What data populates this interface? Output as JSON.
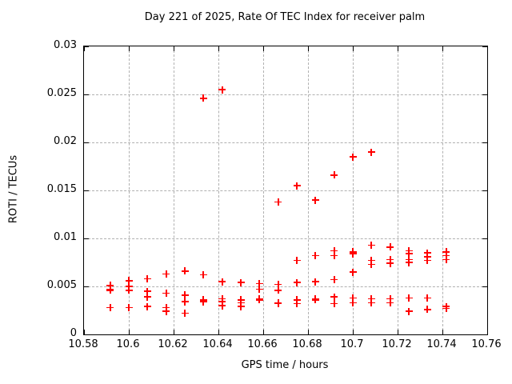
{
  "title": "Day 221 of 2025, Rate Of TEC Index for receiver palm",
  "colors": {
    "marker": "#ff0000",
    "grid": "#b0b0b0",
    "axis": "#000000",
    "background": "#ffffff"
  },
  "chart_data": {
    "type": "scatter",
    "title": "Day 221 of 2025, Rate Of TEC Index for receiver palm",
    "xlabel": "GPS time / hours",
    "ylabel": "ROTI / TECUs",
    "xlim": [
      10.58,
      10.76
    ],
    "ylim": [
      0,
      0.03
    ],
    "xticks": [
      10.58,
      10.6,
      10.62,
      10.64,
      10.66,
      10.68,
      10.7,
      10.72,
      10.74,
      10.76
    ],
    "xtick_labels": [
      "10.58",
      "10.6",
      "10.62",
      "10.64",
      "10.66",
      "10.68",
      "10.7",
      "10.72",
      "10.74",
      "10.76"
    ],
    "yticks": [
      0,
      0.005,
      0.01,
      0.015,
      0.02,
      0.025,
      0.03
    ],
    "ytick_labels": [
      "0",
      "0.005",
      "0.01",
      "0.015",
      "0.02",
      "0.025",
      "0.03"
    ],
    "grid": true,
    "legend": false,
    "marker_style": "plus",
    "points": [
      [
        10.5917,
        0.0051
      ],
      [
        10.5917,
        0.0047
      ],
      [
        10.5917,
        0.0046
      ],
      [
        10.5917,
        0.0028
      ],
      [
        10.6,
        0.0056
      ],
      [
        10.6,
        0.005
      ],
      [
        10.6,
        0.0046
      ],
      [
        10.6,
        0.0028
      ],
      [
        10.6083,
        0.0058
      ],
      [
        10.6083,
        0.0045
      ],
      [
        10.6083,
        0.0039
      ],
      [
        10.6083,
        0.0029
      ],
      [
        10.6167,
        0.0063
      ],
      [
        10.6167,
        0.0043
      ],
      [
        10.6167,
        0.0028
      ],
      [
        10.6167,
        0.0024
      ],
      [
        10.625,
        0.0066
      ],
      [
        10.625,
        0.0041
      ],
      [
        10.625,
        0.0034
      ],
      [
        10.625,
        0.0022
      ],
      [
        10.6333,
        0.0246
      ],
      [
        10.6333,
        0.0062
      ],
      [
        10.6333,
        0.0036
      ],
      [
        10.6333,
        0.0034
      ],
      [
        10.6417,
        0.0255
      ],
      [
        10.6417,
        0.0055
      ],
      [
        10.6417,
        0.0037
      ],
      [
        10.6417,
        0.0034
      ],
      [
        10.6417,
        0.003
      ],
      [
        10.65,
        0.0054
      ],
      [
        10.65,
        0.0036
      ],
      [
        10.65,
        0.0033
      ],
      [
        10.65,
        0.0029
      ],
      [
        10.6583,
        0.0053
      ],
      [
        10.6583,
        0.0047
      ],
      [
        10.6583,
        0.0037
      ],
      [
        10.6583,
        0.0036
      ],
      [
        10.6667,
        0.0138
      ],
      [
        10.6667,
        0.0052
      ],
      [
        10.6667,
        0.0046
      ],
      [
        10.6667,
        0.0033
      ],
      [
        10.6667,
        0.0032
      ],
      [
        10.675,
        0.0155
      ],
      [
        10.675,
        0.0077
      ],
      [
        10.675,
        0.0054
      ],
      [
        10.675,
        0.0036
      ],
      [
        10.675,
        0.0032
      ],
      [
        10.6833,
        0.014
      ],
      [
        10.6833,
        0.0082
      ],
      [
        10.6833,
        0.0055
      ],
      [
        10.6833,
        0.0037
      ],
      [
        10.6833,
        0.0036
      ],
      [
        10.6917,
        0.0166
      ],
      [
        10.6917,
        0.0087
      ],
      [
        10.6917,
        0.0082
      ],
      [
        10.6917,
        0.0057
      ],
      [
        10.6917,
        0.0039
      ],
      [
        10.6917,
        0.0032
      ],
      [
        10.7,
        0.0185
      ],
      [
        10.7,
        0.0086
      ],
      [
        10.7,
        0.0084
      ],
      [
        10.7,
        0.0065
      ],
      [
        10.7,
        0.0038
      ],
      [
        10.7,
        0.0033
      ],
      [
        10.7083,
        0.019
      ],
      [
        10.7083,
        0.0093
      ],
      [
        10.7083,
        0.0077
      ],
      [
        10.7083,
        0.0073
      ],
      [
        10.7083,
        0.0037
      ],
      [
        10.7083,
        0.0033
      ],
      [
        10.7167,
        0.0091
      ],
      [
        10.7167,
        0.0078
      ],
      [
        10.7167,
        0.0074
      ],
      [
        10.7167,
        0.0037
      ],
      [
        10.7167,
        0.0033
      ],
      [
        10.725,
        0.0087
      ],
      [
        10.725,
        0.0084
      ],
      [
        10.725,
        0.0078
      ],
      [
        10.725,
        0.0075
      ],
      [
        10.725,
        0.0038
      ],
      [
        10.725,
        0.0024
      ],
      [
        10.7333,
        0.0085
      ],
      [
        10.7333,
        0.0081
      ],
      [
        10.7333,
        0.0077
      ],
      [
        10.7333,
        0.0038
      ],
      [
        10.7333,
        0.0026
      ],
      [
        10.7417,
        0.0086
      ],
      [
        10.7417,
        0.0082
      ],
      [
        10.7417,
        0.0078
      ],
      [
        10.7417,
        0.0029
      ],
      [
        10.7417,
        0.0027
      ]
    ]
  }
}
